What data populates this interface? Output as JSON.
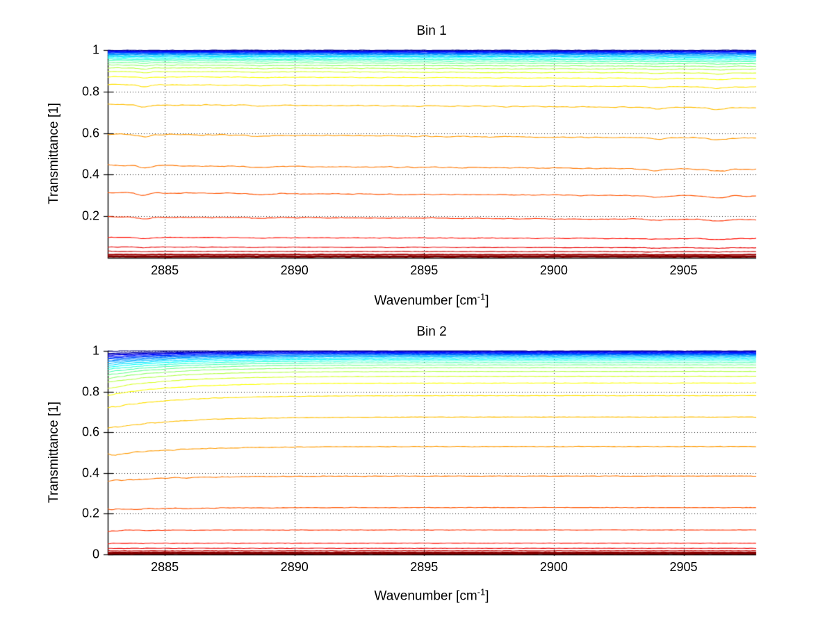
{
  "figure": {
    "background": "#ffffff",
    "axis_color": "#000000",
    "grid_style": "dotted",
    "colormap": "jet",
    "colormap_top_color": "#00008f",
    "colormap_bottom_color": "#8b0000"
  },
  "chart_data": [
    {
      "type": "line",
      "title": "Bin 1",
      "xlabel": {
        "pre": "Wavenumber [cm",
        "sup": "-1",
        "post": "]"
      },
      "ylabel": "Transmittance [1]",
      "x_range": [
        2882.8,
        2907.8
      ],
      "ylim": [
        0,
        1
      ],
      "x_ticks": {
        "values": [
          2885,
          2890,
          2895,
          2900,
          2905
        ],
        "labels": [
          "2885",
          "2890",
          "2895",
          "2900",
          "2905"
        ]
      },
      "y_ticks": {
        "values": [
          1,
          0.8,
          0.6,
          0.4,
          0.2
        ],
        "labels": [
          "1",
          "0.8",
          "0.6",
          "0.4",
          "0.2"
        ]
      },
      "grid": true,
      "legend": false,
      "trend": "slight-decline-to-right",
      "dips_x": [
        2884.2,
        2888.7,
        2904.0,
        2906.3
      ],
      "series_levels": [
        0.999,
        0.997,
        0.995,
        0.993,
        0.991,
        0.988,
        0.985,
        0.982,
        0.978,
        0.973,
        0.968,
        0.962,
        0.955,
        0.947,
        0.937,
        0.925,
        0.911,
        0.893,
        0.867,
        0.828,
        0.73,
        0.585,
        0.435,
        0.305,
        0.19,
        0.095,
        0.05,
        0.03,
        0.015,
        0.006
      ]
    },
    {
      "type": "line",
      "title": "Bin 2",
      "xlabel": {
        "pre": "Wavenumber [cm",
        "sup": "-1",
        "post": "]"
      },
      "ylabel": "Transmittance [1]",
      "x_range": [
        2882.8,
        2907.8
      ],
      "ylim": [
        0,
        1
      ],
      "x_ticks": {
        "values": [
          2885,
          2890,
          2895,
          2900,
          2905
        ],
        "labels": [
          "2885",
          "2890",
          "2895",
          "2900",
          "2905"
        ]
      },
      "y_ticks": {
        "values": [
          1,
          0.8,
          0.6,
          0.4,
          0.2,
          0
        ],
        "labels": [
          "1",
          "0.8",
          "0.6",
          "0.4",
          "0.2",
          "0"
        ]
      },
      "grid": true,
      "legend": false,
      "trend": "rise-from-left-edge",
      "dips_x": [],
      "series_levels": [
        1.0,
        0.998,
        0.996,
        0.994,
        0.991,
        0.988,
        0.985,
        0.981,
        0.977,
        0.972,
        0.966,
        0.959,
        0.951,
        0.942,
        0.931,
        0.917,
        0.899,
        0.875,
        0.842,
        0.78,
        0.675,
        0.53,
        0.385,
        0.23,
        0.12,
        0.055,
        0.03,
        0.018,
        0.01,
        0.005
      ]
    }
  ]
}
